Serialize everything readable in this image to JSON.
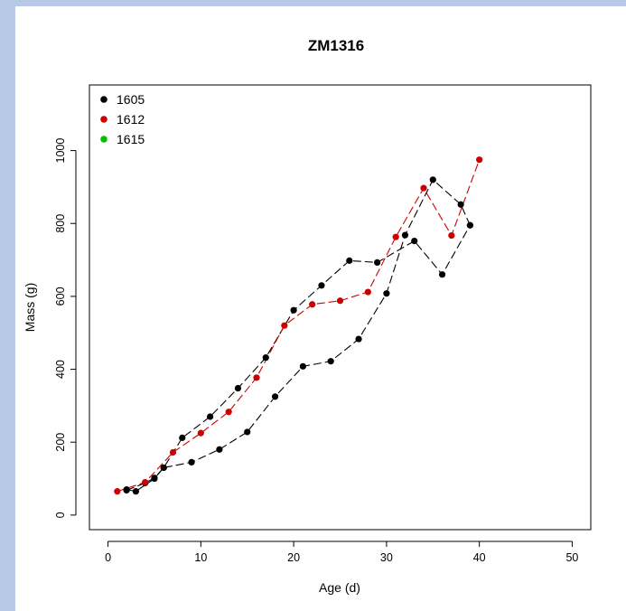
{
  "chart_data": {
    "type": "scatter",
    "title": "ZM1316",
    "xlabel": "Age (d)",
    "ylabel": "Mass (g)",
    "xlim": [
      -2,
      52
    ],
    "ylim": [
      -40,
      1180
    ],
    "xticks": [
      0,
      10,
      20,
      30,
      40,
      50
    ],
    "yticks": [
      0,
      200,
      400,
      600,
      800,
      1000
    ],
    "legend_position": "top-left",
    "legend": [
      {
        "name": "1605",
        "color": "#000000"
      },
      {
        "name": "1612",
        "color": "#cc0000"
      },
      {
        "name": "1615",
        "color": "#00c000"
      }
    ],
    "series": [
      {
        "name": "1605",
        "color": "#000000",
        "x": [
          2,
          3,
          5,
          6,
          9,
          12,
          15,
          18,
          21,
          24,
          27,
          30,
          32,
          35,
          38,
          39
        ],
        "y": [
          70,
          65,
          100,
          130,
          145,
          180,
          228,
          325,
          408,
          422,
          483,
          608,
          768,
          920,
          852,
          795
        ]
      },
      {
        "name": "1605",
        "color": "#000000",
        "x": [
          2,
          4,
          5,
          6,
          8,
          11,
          14,
          17,
          20,
          23,
          26,
          29,
          33,
          36,
          39
        ],
        "y": [
          68,
          88,
          102,
          130,
          212,
          270,
          348,
          432,
          562,
          630,
          698,
          693,
          752,
          660,
          795
        ]
      },
      {
        "name": "1612",
        "color": "#cc0000",
        "x": [
          1,
          4,
          7,
          10,
          13,
          16,
          19,
          22,
          25,
          28,
          31,
          34,
          37,
          40
        ],
        "y": [
          65,
          90,
          172,
          225,
          283,
          377,
          520,
          578,
          588,
          612,
          763,
          897,
          767,
          975
        ]
      }
    ]
  }
}
